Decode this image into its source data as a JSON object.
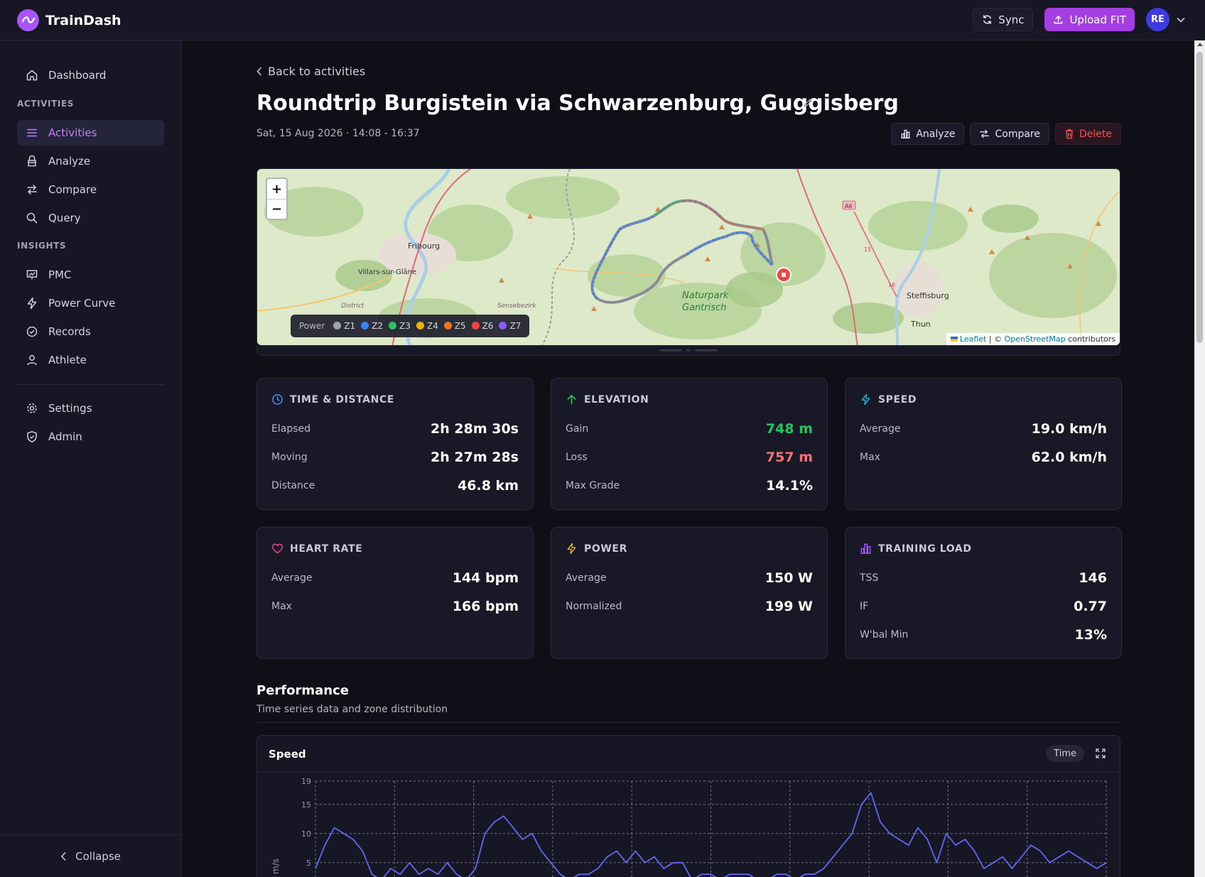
{
  "app": {
    "name": "TrainDash"
  },
  "topbar": {
    "sync_label": "Sync",
    "upload_label": "Upload FIT",
    "avatar_initials": "RE"
  },
  "sidebar": {
    "dashboard": "Dashboard",
    "section_activities": "ACTIVITIES",
    "activities": "Activities",
    "analyze": "Analyze",
    "compare": "Compare",
    "query": "Query",
    "section_insights": "INSIGHTS",
    "pmc": "PMC",
    "power_curve": "Power Curve",
    "records": "Records",
    "athlete": "Athlete",
    "settings": "Settings",
    "admin": "Admin",
    "collapse": "Collapse"
  },
  "page": {
    "back_label": "Back to activities",
    "title": "Roundtrip Burgistein via Schwarzenburg, Guggisberg",
    "datetime": "Sat, 15 Aug 2026 · 14:08 - 16:37",
    "analyze_label": "Analyze",
    "compare_label": "Compare",
    "delete_label": "Delete"
  },
  "map": {
    "zoom_in": "+",
    "zoom_out": "−",
    "places": {
      "fribourg": "Fribourg",
      "villars": "Villars-sur-Glâne",
      "naturpark1": "Naturpark",
      "naturpark2": "Gantrisch",
      "steffisburg": "Steffisburg",
      "thun": "Thun",
      "sensebezirk": "Sensebezirk",
      "district": "District"
    },
    "road_labels": {
      "a6": "A6",
      "r15": "15",
      "r16": "16"
    },
    "legend_title": "Power",
    "zones": [
      {
        "label": "Z1",
        "color": "#9ca3af"
      },
      {
        "label": "Z2",
        "color": "#3b82f6"
      },
      {
        "label": "Z3",
        "color": "#22c55e"
      },
      {
        "label": "Z4",
        "color": "#eab308"
      },
      {
        "label": "Z5",
        "color": "#f97316"
      },
      {
        "label": "Z6",
        "color": "#ef4444"
      },
      {
        "label": "Z7",
        "color": "#8b5cf6"
      }
    ],
    "attribution_leaflet": "Leaflet",
    "attribution_sep": " | © ",
    "attribution_osm": "OpenStreetMap",
    "attribution_tail": " contributors"
  },
  "cards": {
    "time": {
      "title": "TIME & DISTANCE",
      "elapsed_label": "Elapsed",
      "elapsed": "2h 28m 30s",
      "moving_label": "Moving",
      "moving": "2h 27m 28s",
      "distance_label": "Distance",
      "distance": "46.8 km"
    },
    "elevation": {
      "title": "ELEVATION",
      "gain_label": "Gain",
      "gain": "748 m",
      "loss_label": "Loss",
      "loss": "757 m",
      "grade_label": "Max Grade",
      "grade": "14.1%"
    },
    "speed": {
      "title": "SPEED",
      "avg_label": "Average",
      "avg": "19.0 km/h",
      "max_label": "Max",
      "max": "62.0 km/h"
    },
    "hr": {
      "title": "HEART RATE",
      "avg_label": "Average",
      "avg": "144 bpm",
      "max_label": "Max",
      "max": "166 bpm"
    },
    "power": {
      "title": "POWER",
      "avg_label": "Average",
      "avg": "150 W",
      "np_label": "Normalized",
      "np": "199 W"
    },
    "load": {
      "title": "TRAINING LOAD",
      "tss_label": "TSS",
      "tss": "146",
      "if_label": "IF",
      "if": "0.77",
      "wbal_label": "W'bal Min",
      "wbal": "13%"
    }
  },
  "colors": {
    "accent": "#a855f7",
    "gain": "#22c55e",
    "loss": "#f87171",
    "series": "#6366f1"
  },
  "performance": {
    "title": "Performance",
    "subtitle": "Time series data and zone distribution",
    "chart_title": "Speed",
    "time_label": "Time"
  },
  "chart_data": {
    "type": "line",
    "title": "Speed",
    "xlabel": "",
    "ylabel": "m/s",
    "yticks": [
      "19",
      "15",
      "10",
      "5"
    ],
    "ylim": [
      0,
      19
    ],
    "grid": true,
    "series": [
      {
        "values": [
          4,
          8,
          11,
          10,
          9,
          7,
          3,
          2,
          4,
          3,
          5,
          3,
          4,
          3,
          5,
          3,
          2,
          4,
          10,
          12,
          13,
          11,
          9,
          10,
          7,
          5,
          3,
          2,
          3,
          3,
          4,
          6,
          7,
          5,
          7,
          5,
          6,
          4,
          5,
          5,
          2,
          3,
          3,
          2,
          3,
          3,
          3,
          2,
          2,
          3,
          3,
          2,
          3,
          3,
          4,
          6,
          8,
          10,
          15,
          17,
          12,
          10,
          9,
          8,
          11,
          9,
          5,
          10,
          8,
          9,
          7,
          4,
          5,
          6,
          4,
          6,
          8,
          7,
          5,
          6,
          7,
          6,
          5,
          4,
          5
        ]
      }
    ]
  }
}
